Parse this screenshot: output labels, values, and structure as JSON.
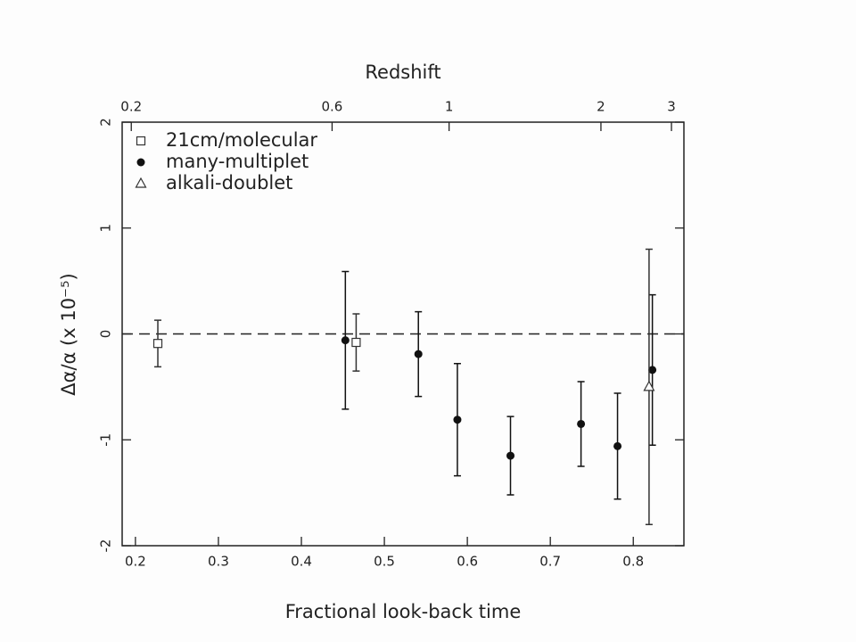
{
  "chart_data": {
    "type": "scatter",
    "xlabel": "Fractional look-back time",
    "ylabel": "Δα/α (x 10⁻⁵)",
    "x2label": "Redshift",
    "xlim": [
      0.184,
      0.861
    ],
    "ylim": [
      -2,
      2
    ],
    "xticks": [
      0.2,
      0.3,
      0.4,
      0.5,
      0.6,
      0.7,
      0.8
    ],
    "yticks": [
      -2,
      -1,
      0,
      1,
      2
    ],
    "x2ticks": [
      {
        "value": 0.195,
        "label": "0.2"
      },
      {
        "value": 0.437,
        "label": "0.6"
      },
      {
        "value": 0.578,
        "label": "1"
      },
      {
        "value": 0.761,
        "label": "2"
      },
      {
        "value": 0.846,
        "label": "3"
      }
    ],
    "reference_line": 0,
    "legend": "upper left",
    "series": [
      {
        "name": "21cm/molecular",
        "marker": "square",
        "color": "#333333",
        "x": [
          0.227,
          0.466
        ],
        "values": [
          -0.09,
          -0.08
        ],
        "errors": [
          0.22,
          0.27
        ]
      },
      {
        "name": "many-multiplet",
        "marker": "circle",
        "color": "#111111",
        "x": [
          0.453,
          0.541,
          0.588,
          0.652,
          0.737,
          0.781,
          0.823
        ],
        "values": [
          -0.06,
          -0.19,
          -0.81,
          -1.15,
          -0.85,
          -1.06,
          -0.34
        ],
        "errors": [
          0.65,
          0.4,
          0.53,
          0.37,
          0.4,
          0.5,
          0.71
        ]
      },
      {
        "name": "alkali-doublet",
        "marker": "triangle",
        "color": "#333333",
        "x": [
          0.819
        ],
        "values": [
          -0.5
        ],
        "errors": [
          1.3
        ]
      }
    ]
  }
}
